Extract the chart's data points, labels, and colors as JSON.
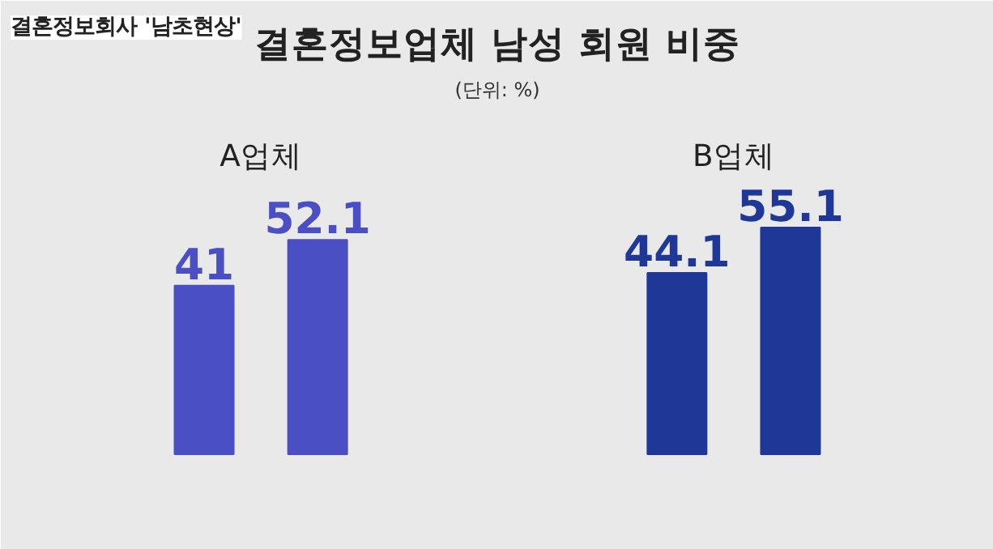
{
  "chart_data": {
    "type": "bar",
    "title": "결혼정보업체 남성 회원 비중",
    "subtitle": "(단위: %)",
    "annotations": [
      "결혼정보회사 '남초현상'"
    ],
    "categories": [
      "A업체",
      "B업체"
    ],
    "series": [
      {
        "colors": [
          "#4a4fc4",
          "#1f3897"
        ],
        "values": [
          41,
          44.1
        ]
      },
      {
        "colors": [
          "#4a4fc4",
          "#1f3897"
        ],
        "values": [
          52.1,
          55.1
        ]
      }
    ],
    "data_labels": true
  }
}
